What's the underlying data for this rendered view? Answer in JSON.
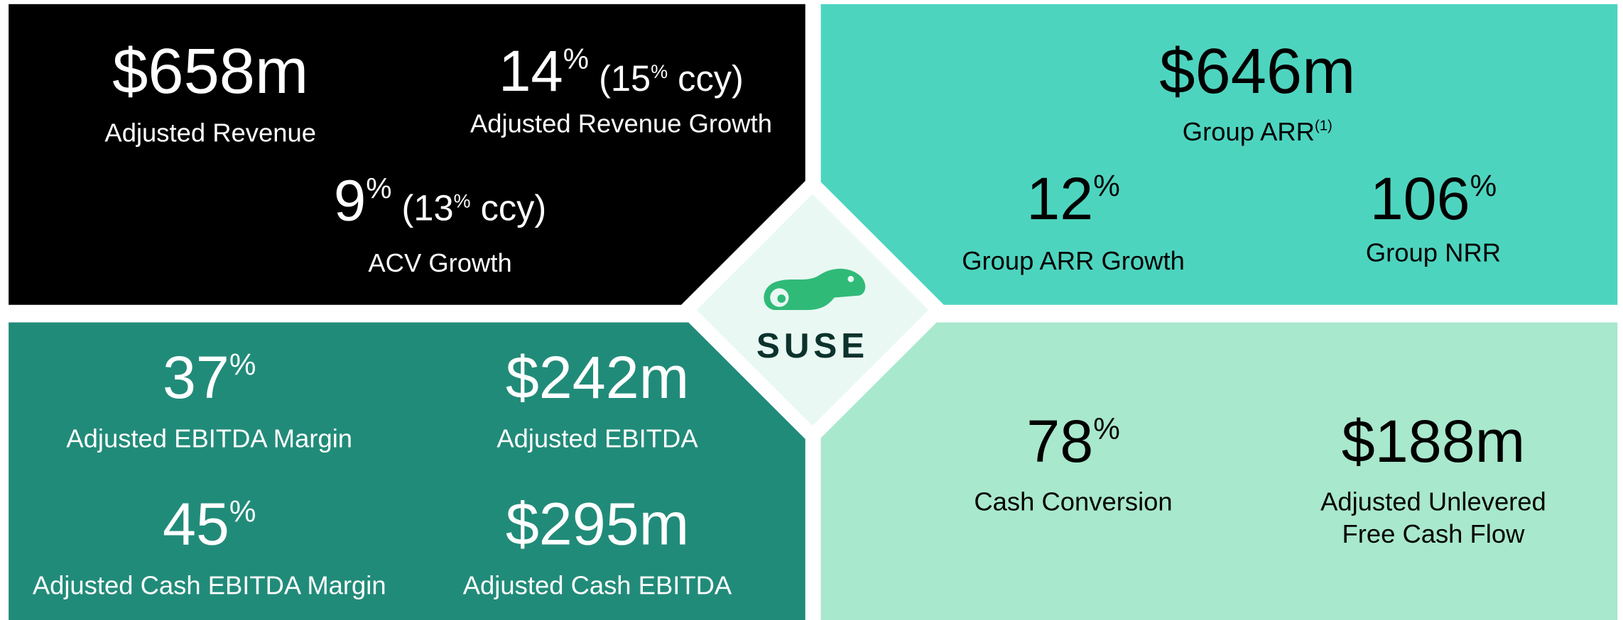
{
  "logo": "SUSE",
  "quadrants": [
    {
      "color": "#000000",
      "text_color": "#ffffff",
      "metrics": [
        {
          "parts": [
            {
              "text": "$658m"
            }
          ],
          "label": [
            "Adjusted Revenue"
          ]
        },
        {
          "parts": [
            {
              "text": "14"
            },
            {
              "text": "%",
              "sup": true
            },
            {
              "text": " (15"
            },
            {
              "text": "%",
              "sup": true
            },
            {
              "text": " ccy)"
            }
          ],
          "label": [
            "Adjusted Revenue Growth"
          ]
        },
        {
          "parts": [
            {
              "text": "9"
            },
            {
              "text": "%",
              "sup": true
            },
            {
              "text": " (13"
            },
            {
              "text": "%",
              "sup": true
            },
            {
              "text": " ccy)"
            }
          ],
          "label": [
            "ACV Growth"
          ]
        }
      ]
    },
    {
      "color": "#4dd4bf",
      "text_color": "#000000",
      "metrics": [
        {
          "parts": [
            {
              "text": "$646m"
            }
          ],
          "label": [
            "Group ARR"
          ],
          "label_sup": "(1)"
        },
        {
          "parts": [
            {
              "text": "12"
            },
            {
              "text": "%",
              "sup": true
            }
          ],
          "label": [
            "Group ARR Growth"
          ]
        },
        {
          "parts": [
            {
              "text": "106"
            },
            {
              "text": "%",
              "sup": true
            }
          ],
          "label": [
            "Group NRR"
          ]
        }
      ]
    },
    {
      "color": "#218b79",
      "text_color": "#ffffff",
      "metrics": [
        {
          "parts": [
            {
              "text": "37"
            },
            {
              "text": "%",
              "sup": true
            }
          ],
          "label": [
            "Adjusted EBITDA Margin"
          ]
        },
        {
          "parts": [
            {
              "text": "$242m"
            }
          ],
          "label": [
            "Adjusted EBITDA"
          ]
        },
        {
          "parts": [
            {
              "text": "45"
            },
            {
              "text": "%",
              "sup": true
            }
          ],
          "label": [
            "Adjusted Cash EBITDA Margin"
          ]
        },
        {
          "parts": [
            {
              "text": "$295m"
            }
          ],
          "label": [
            "Adjusted Cash EBITDA"
          ]
        }
      ]
    },
    {
      "color": "#a8e8cc",
      "text_color": "#000000",
      "metrics": [
        {
          "parts": [
            {
              "text": "78"
            },
            {
              "text": "%",
              "sup": true
            }
          ],
          "label": [
            "Cash Conversion"
          ]
        },
        {
          "parts": [
            {
              "text": "$188m"
            }
          ],
          "label": [
            "Adjusted Unlevered",
            "Free Cash Flow"
          ]
        }
      ]
    }
  ]
}
